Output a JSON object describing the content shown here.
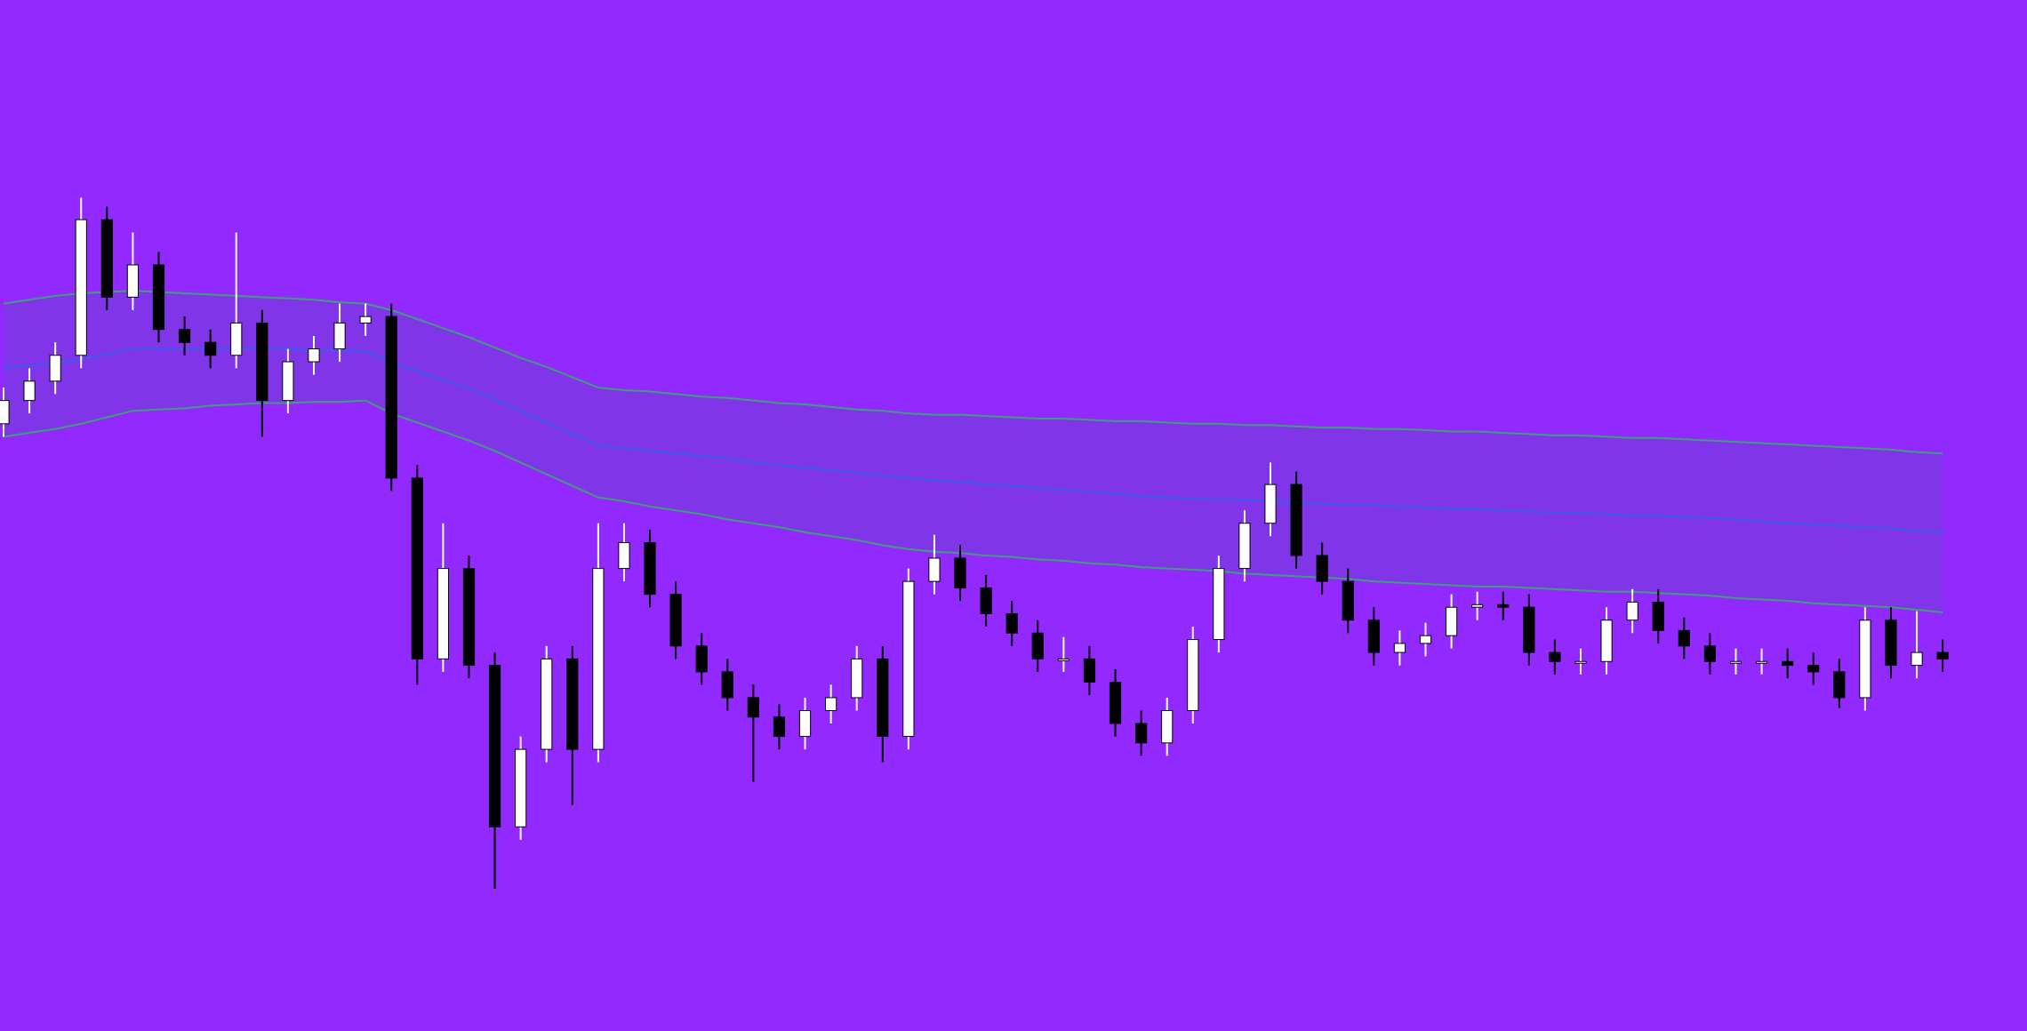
{
  "chart_data": {
    "type": "candlestick",
    "background": "#9229fe",
    "up_color": "#ffffff",
    "down_color": "#000000",
    "ylim": [
      0,
      798
    ],
    "open": [
      470,
      488,
      503,
      523,
      628,
      568,
      593,
      543,
      533,
      523,
      548,
      488,
      518,
      528,
      548,
      553,
      428,
      288,
      358,
      283,
      158,
      218,
      288,
      218,
      358,
      378,
      338,
      298,
      278,
      258,
      243,
      228,
      248,
      258,
      288,
      228,
      348,
      366,
      343,
      323,
      308,
      288,
      288,
      270,
      238,
      223,
      248,
      303,
      358,
      393,
      423,
      368,
      348,
      318,
      293,
      300,
      306,
      328,
      330,
      328,
      293,
      286,
      286,
      318,
      332,
      310,
      298,
      286,
      286,
      286,
      283,
      278,
      258,
      318,
      283,
      293
    ],
    "high": [
      498,
      513,
      533,
      645,
      638,
      618,
      603,
      553,
      543,
      618,
      558,
      528,
      538,
      563,
      563,
      563,
      438,
      393,
      368,
      293,
      228,
      298,
      298,
      393,
      393,
      388,
      348,
      308,
      288,
      268,
      253,
      258,
      268,
      298,
      298,
      358,
      384,
      376,
      353,
      333,
      318,
      305,
      298,
      280,
      248,
      258,
      313,
      368,
      403,
      440,
      433,
      378,
      358,
      328,
      310,
      316,
      338,
      340,
      340,
      338,
      303,
      296,
      328,
      342,
      342,
      320,
      308,
      296,
      296,
      296,
      293,
      288,
      328,
      328,
      325,
      303
    ],
    "low": [
      460,
      478,
      493,
      513,
      558,
      558,
      533,
      523,
      513,
      513,
      460,
      478,
      508,
      518,
      538,
      418,
      268,
      278,
      273,
      110,
      148,
      208,
      175,
      208,
      348,
      328,
      288,
      268,
      248,
      193,
      218,
      218,
      238,
      248,
      208,
      218,
      338,
      333,
      313,
      298,
      278,
      278,
      260,
      228,
      213,
      213,
      238,
      293,
      348,
      383,
      358,
      338,
      308,
      283,
      283,
      290,
      296,
      318,
      318,
      283,
      276,
      276,
      276,
      308,
      300,
      288,
      276,
      276,
      276,
      273,
      268,
      250,
      248,
      273,
      273,
      278
    ],
    "close": [
      488,
      503,
      523,
      628,
      568,
      593,
      543,
      533,
      523,
      548,
      488,
      518,
      528,
      548,
      553,
      428,
      288,
      358,
      283,
      158,
      218,
      288,
      218,
      358,
      378,
      338,
      298,
      278,
      258,
      243,
      228,
      248,
      258,
      288,
      228,
      348,
      366,
      343,
      323,
      308,
      288,
      288,
      270,
      238,
      223,
      248,
      303,
      358,
      393,
      423,
      368,
      348,
      318,
      293,
      300,
      306,
      328,
      330,
      328,
      293,
      286,
      286,
      318,
      332,
      310,
      298,
      286,
      286,
      286,
      283,
      278,
      258,
      318,
      283,
      293,
      288
    ],
    "bands": {
      "edge_color": "#3f9f7a",
      "middle_color": "#3a5cf0",
      "fill_color": "#7a3ae0",
      "upper": [
        563,
        566,
        569,
        571,
        572,
        573,
        572,
        571,
        570,
        569,
        568,
        567,
        566,
        564,
        563,
        558,
        551,
        544,
        537,
        529,
        521,
        514,
        506,
        498,
        496,
        495,
        493,
        491,
        490,
        488,
        486,
        485,
        483,
        481,
        480,
        478,
        477,
        477,
        476,
        475,
        474,
        474,
        473,
        472,
        472,
        471,
        470,
        470,
        469,
        469,
        468,
        467,
        467,
        466,
        466,
        465,
        464,
        464,
        463,
        462,
        461,
        461,
        460,
        459,
        459,
        458,
        457,
        456,
        455,
        454,
        453,
        452,
        451,
        450,
        448,
        447
      ],
      "middle": [
        513,
        515,
        517,
        520,
        524,
        528,
        528,
        528,
        528,
        528,
        528,
        528,
        527,
        527,
        526,
        518,
        511,
        504,
        497,
        489,
        480,
        471,
        462,
        453,
        451,
        449,
        447,
        445,
        443,
        440,
        438,
        436,
        434,
        432,
        430,
        428,
        426,
        425,
        423,
        422,
        420,
        419,
        417,
        416,
        414,
        413,
        412,
        411,
        411,
        410,
        409,
        408,
        407,
        407,
        406,
        405,
        404,
        404,
        403,
        402,
        401,
        401,
        400,
        399,
        399,
        398,
        397,
        396,
        394,
        393,
        392,
        391,
        390,
        389,
        387,
        386
      ],
      "lower": [
        460,
        463,
        466,
        470,
        475,
        480,
        481,
        482,
        484,
        485,
        486,
        486,
        487,
        487,
        488,
        478,
        471,
        464,
        457,
        449,
        440,
        431,
        422,
        413,
        410,
        406,
        403,
        400,
        396,
        393,
        390,
        386,
        383,
        380,
        376,
        373,
        371,
        370,
        368,
        367,
        365,
        364,
        362,
        361,
        359,
        358,
        357,
        356,
        354,
        353,
        352,
        351,
        350,
        348,
        347,
        346,
        345,
        344,
        344,
        343,
        342,
        341,
        340,
        340,
        339,
        338,
        337,
        335,
        334,
        333,
        331,
        330,
        329,
        328,
        326,
        324
      ]
    }
  }
}
